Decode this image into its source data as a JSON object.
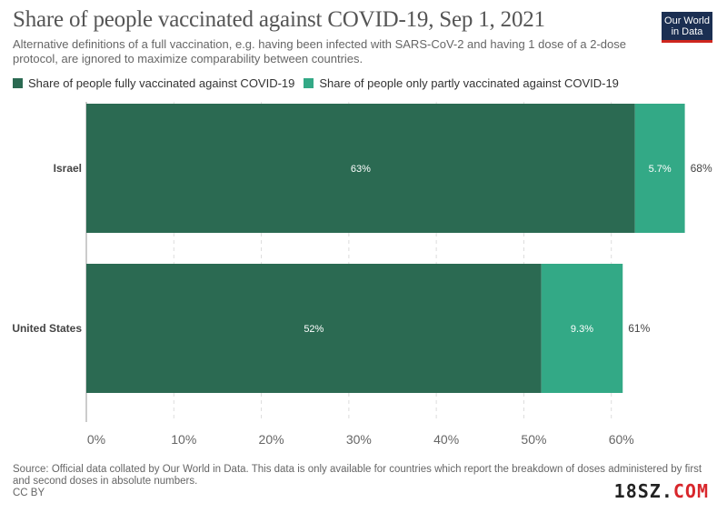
{
  "header": {
    "title": "Share of people vaccinated against COVID-19, Sep 1, 2021",
    "subtitle": "Alternative definitions of a full vaccination, e.g. having been infected with SARS-CoV-2 and having 1 dose of a 2-dose protocol, are ignored to maximize comparability between countries.",
    "logo_line1": "Our World",
    "logo_line2": "in Data"
  },
  "footer": {
    "source": "Source: Official data collated by Our World in Data. This data is only available for countries which report the breakdown of doses administered by first and second doses in absolute numbers.",
    "license": "CC BY",
    "watermark_main": "18SZ.",
    "watermark_suffix": "COM"
  },
  "colors": {
    "fully": "#2b6a52",
    "partly": "#33a986",
    "grid": "#dddddd",
    "axis_text": "#666666"
  },
  "chart_data": {
    "type": "bar",
    "orientation": "horizontal",
    "stacked": true,
    "title": "Share of people vaccinated against COVID-19, Sep 1, 2021",
    "categories": [
      "Israel",
      "United States"
    ],
    "series": [
      {
        "name": "Share of people fully vaccinated against COVID-19",
        "values": [
          62.7,
          52.0
        ],
        "labels": [
          "63%",
          "52%"
        ]
      },
      {
        "name": "Share of people only partly vaccinated against COVID-19",
        "values": [
          5.7,
          9.3
        ],
        "labels": [
          "5.7%",
          "9.3%"
        ]
      }
    ],
    "totals": [
      "68%",
      "61%"
    ],
    "xlim": [
      0,
      70
    ],
    "xticks": [
      0,
      10,
      20,
      30,
      40,
      50,
      60
    ],
    "xtick_labels": [
      "0%",
      "10%",
      "20%",
      "30%",
      "40%",
      "50%",
      "60%"
    ],
    "grid": true,
    "legend_position": "top-left"
  }
}
